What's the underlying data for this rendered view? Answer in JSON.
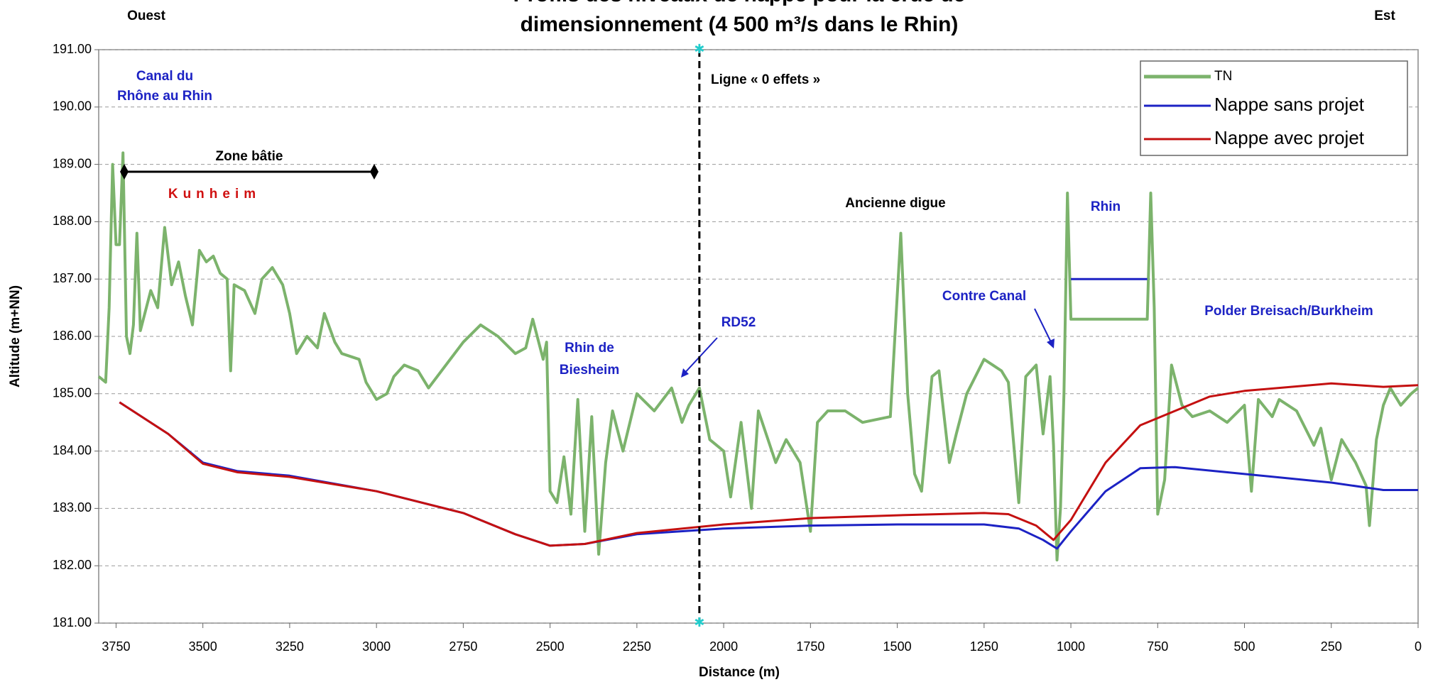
{
  "chart_data": {
    "type": "line",
    "title": [
      "Profils des niveaux de nappe pour la crue de",
      "dimensionnement (4 500 m³/s dans le Rhin)"
    ],
    "x_label": "Distance (m)",
    "y_label": "Altitude (m+NN)",
    "xlim": [
      3800,
      0
    ],
    "ylim": [
      181,
      191
    ],
    "xticks": [
      3750,
      3500,
      3250,
      3000,
      2750,
      2500,
      2250,
      2000,
      1750,
      1500,
      1250,
      1000,
      750,
      500,
      250,
      0
    ],
    "yticks": [
      {
        "value": 181,
        "label": "181.00"
      },
      {
        "value": 182,
        "label": "182.00"
      },
      {
        "value": 183,
        "label": "183.00"
      },
      {
        "value": 184,
        "label": "184.00"
      },
      {
        "value": 185,
        "label": "185.00"
      },
      {
        "value": 186,
        "label": "186.00"
      },
      {
        "value": 187,
        "label": "187.00"
      },
      {
        "value": 188,
        "label": "188.00"
      },
      {
        "value": 189,
        "label": "189.00"
      },
      {
        "value": 190,
        "label": "190.00"
      },
      {
        "value": 191,
        "label": "191.00"
      }
    ],
    "grid": true,
    "legend": "top-right",
    "reference_line_x": 2070,
    "annotations": [
      "Ouest",
      "Est",
      "Canal du",
      "Rhône au Rhin",
      "Zone bâtie",
      "Kunheim",
      "Ligne « 0 effets »",
      "Ancienne digue",
      "Rhin",
      "Contre Canal",
      "Polder Breisach/Burkheim",
      "RD52",
      "Rhin de",
      "Biesheim"
    ],
    "series": [
      {
        "name": "TN",
        "color": "#7cb36c",
        "x": [
          3800,
          3780,
          3770,
          3760,
          3750,
          3740,
          3730,
          3720,
          3710,
          3700,
          3690,
          3680,
          3650,
          3630,
          3610,
          3590,
          3570,
          3550,
          3530,
          3510,
          3490,
          3470,
          3450,
          3430,
          3420,
          3410,
          3380,
          3350,
          3330,
          3300,
          3270,
          3250,
          3230,
          3200,
          3170,
          3150,
          3120,
          3100,
          3050,
          3030,
          3000,
          2970,
          2950,
          2920,
          2880,
          2850,
          2800,
          2750,
          2700,
          2650,
          2600,
          2570,
          2550,
          2520,
          2510,
          2500,
          2480,
          2460,
          2440,
          2420,
          2400,
          2380,
          2360,
          2340,
          2320,
          2290,
          2250,
          2200,
          2150,
          2120,
          2100,
          2070,
          2040,
          2000,
          1980,
          1950,
          1920,
          1900,
          1850,
          1820,
          1780,
          1750,
          1730,
          1700,
          1650,
          1600,
          1520,
          1490,
          1470,
          1450,
          1430,
          1400,
          1380,
          1350,
          1330,
          1300,
          1250,
          1200,
          1180,
          1150,
          1130,
          1100,
          1080,
          1060,
          1050,
          1040,
          1030,
          1020,
          1010,
          1000,
          780,
          770,
          760,
          750,
          730,
          710,
          680,
          650,
          600,
          550,
          500,
          480,
          460,
          420,
          400,
          350,
          300,
          280,
          250,
          220,
          180,
          150,
          140,
          120,
          100,
          80,
          50,
          20,
          0
        ],
        "values": [
          185.3,
          185.2,
          186.5,
          189.0,
          187.6,
          187.6,
          189.2,
          186.0,
          185.7,
          186.2,
          187.8,
          186.1,
          186.8,
          186.5,
          187.9,
          186.9,
          187.3,
          186.7,
          186.2,
          187.5,
          187.3,
          187.4,
          187.1,
          187.0,
          185.4,
          186.9,
          186.8,
          186.4,
          187.0,
          187.2,
          186.9,
          186.4,
          185.7,
          186.0,
          185.8,
          186.4,
          185.9,
          185.7,
          185.6,
          185.2,
          184.9,
          185.0,
          185.3,
          185.5,
          185.4,
          185.1,
          185.5,
          185.9,
          186.2,
          186.0,
          185.7,
          185.8,
          186.3,
          185.6,
          185.9,
          183.3,
          183.1,
          183.9,
          182.9,
          184.9,
          182.6,
          184.6,
          182.2,
          183.8,
          184.7,
          184.0,
          185.0,
          184.7,
          185.1,
          184.5,
          184.8,
          185.1,
          184.2,
          184.0,
          183.2,
          184.5,
          183.0,
          184.7,
          183.8,
          184.2,
          183.8,
          182.6,
          184.5,
          184.7,
          184.7,
          184.5,
          184.6,
          187.8,
          185.0,
          183.6,
          183.3,
          185.3,
          185.4,
          183.8,
          184.3,
          185.0,
          185.6,
          185.4,
          185.2,
          183.1,
          185.3,
          185.5,
          184.3,
          185.3,
          184.1,
          182.1,
          183.0,
          185.0,
          188.5,
          186.3,
          186.3,
          188.5,
          186.5,
          182.9,
          183.5,
          185.5,
          184.8,
          184.6,
          184.7,
          184.5,
          184.8,
          183.3,
          184.9,
          184.6,
          184.9,
          184.7,
          184.1,
          184.4,
          183.5,
          184.2,
          183.8,
          183.4,
          182.7,
          184.2,
          184.8,
          185.1,
          184.8,
          185.0,
          185.1
        ]
      },
      {
        "name": "Nappe sans projet",
        "color": "#1c22c4",
        "x": [
          3740,
          3600,
          3500,
          3400,
          3250,
          3000,
          2750,
          2600,
          2500,
          2400,
          2250,
          2000,
          1750,
          1500,
          1250,
          1150,
          1080,
          1040,
          1000,
          900,
          800,
          700,
          500,
          250,
          100,
          0,
          null,
          1000,
          780
        ],
        "values": [
          184.85,
          184.3,
          183.8,
          183.65,
          183.57,
          183.3,
          182.92,
          182.55,
          182.35,
          182.38,
          182.55,
          182.65,
          182.7,
          182.72,
          182.72,
          182.65,
          182.45,
          182.3,
          182.6,
          183.3,
          183.7,
          183.72,
          183.6,
          183.45,
          183.32,
          183.32,
          null,
          187,
          187
        ]
      },
      {
        "name": "Nappe avec projet",
        "color": "#c41010",
        "x": [
          3740,
          3600,
          3500,
          3400,
          3250,
          3000,
          2750,
          2600,
          2500,
          2400,
          2250,
          2000,
          1750,
          1500,
          1250,
          1180,
          1100,
          1050,
          1000,
          900,
          800,
          700,
          600,
          500,
          250,
          100,
          0
        ],
        "values": [
          184.85,
          184.3,
          183.78,
          183.63,
          183.55,
          183.3,
          182.92,
          182.55,
          182.35,
          182.38,
          182.57,
          182.72,
          182.83,
          182.88,
          182.92,
          182.9,
          182.7,
          182.45,
          182.8,
          183.8,
          184.45,
          184.7,
          184.95,
          185.05,
          185.18,
          185.12,
          185.15
        ]
      }
    ]
  }
}
